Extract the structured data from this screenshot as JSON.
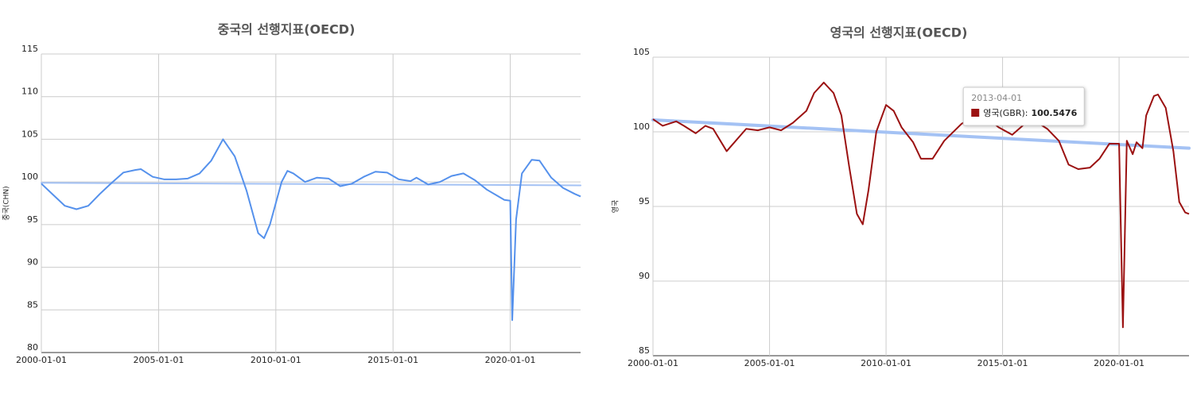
{
  "chart_data": [
    {
      "type": "line",
      "title": "중국의 선행지표(OECD)",
      "y_label": "중국(CHN)",
      "x": [
        "2000-01-01",
        "2000-07-01",
        "2001-01-01",
        "2001-07-01",
        "2002-01-01",
        "2002-07-01",
        "2003-01-01",
        "2003-07-01",
        "2004-01-01",
        "2004-04-01",
        "2004-10-01",
        "2005-04-01",
        "2005-10-01",
        "2006-04-01",
        "2006-10-01",
        "2007-04-01",
        "2007-10-01",
        "2008-04-01",
        "2008-10-01",
        "2009-04-01",
        "2009-07-01",
        "2009-10-01",
        "2010-04-01",
        "2010-07-01",
        "2010-10-01",
        "2011-04-01",
        "2011-10-01",
        "2012-04-01",
        "2012-10-01",
        "2013-04-01",
        "2013-10-01",
        "2014-04-01",
        "2014-10-01",
        "2015-04-01",
        "2015-10-01",
        "2016-01-01",
        "2016-07-01",
        "2017-01-01",
        "2017-07-01",
        "2018-01-01",
        "2018-07-01",
        "2019-01-01",
        "2019-07-01",
        "2019-10-01",
        "2020-01-01",
        "2020-02-01",
        "2020-04-01",
        "2020-07-01",
        "2020-12-01",
        "2021-04-01",
        "2021-10-01",
        "2022-04-01",
        "2022-10-01",
        "2023-01-01"
      ],
      "series": [
        {
          "color": "#5591ec",
          "values": [
            99.8,
            98.5,
            97.2,
            96.8,
            97.2,
            98.6,
            99.9,
            101.1,
            101.4,
            101.5,
            100.6,
            100.3,
            100.3,
            100.4,
            101.0,
            102.5,
            105.0,
            103.0,
            99.0,
            94.0,
            93.4,
            95.0,
            100.0,
            101.3,
            101.0,
            100.0,
            100.5,
            100.4,
            99.5,
            99.8,
            100.6,
            101.2,
            101.1,
            100.3,
            100.1,
            100.5,
            99.7,
            100.0,
            100.7,
            101.0,
            100.2,
            99.1,
            98.3,
            97.9,
            97.8,
            83.8,
            95.6,
            101.0,
            102.6,
            102.5,
            100.5,
            99.3,
            98.6,
            98.3
          ]
        }
      ],
      "trendline": {
        "color": "#a4c2f4",
        "x": [
          "2000-01-01",
          "2023-01-01"
        ],
        "values": [
          99.9,
          99.6
        ]
      },
      "xlim": [
        "2000-01-01",
        "2023-01-01"
      ],
      "xticks": [
        "2000-01-01",
        "2005-01-01",
        "2010-01-01",
        "2015-01-01",
        "2020-01-01"
      ],
      "ylim": [
        80,
        115
      ],
      "yticks": [
        80,
        85,
        90,
        95,
        100,
        105,
        110,
        115
      ],
      "grid": true
    },
    {
      "type": "line",
      "title": "영국의 선행지표(OECD)",
      "y_label": "영국",
      "x": [
        "2000-01-01",
        "2000-06-01",
        "2001-01-01",
        "2001-05-01",
        "2001-11-01",
        "2002-04-01",
        "2002-08-01",
        "2003-03-01",
        "2004-01-01",
        "2004-07-01",
        "2005-01-01",
        "2005-07-01",
        "2006-01-01",
        "2006-08-01",
        "2006-12-01",
        "2007-05-01",
        "2007-10-01",
        "2008-02-01",
        "2008-06-01",
        "2008-10-01",
        "2009-01-01",
        "2009-04-01",
        "2009-08-01",
        "2010-01-01",
        "2010-05-01",
        "2010-09-01",
        "2011-03-01",
        "2011-07-01",
        "2012-01-01",
        "2012-07-01",
        "2013-04-01",
        "2013-12-01",
        "2014-05-01",
        "2014-11-01",
        "2015-06-01",
        "2016-01-01",
        "2016-06-01",
        "2016-12-01",
        "2017-06-01",
        "2017-11-01",
        "2018-04-01",
        "2018-10-01",
        "2019-03-01",
        "2019-08-01",
        "2020-01-01",
        "2020-03-01",
        "2020-05-01",
        "2020-08-01",
        "2020-10-01",
        "2021-01-01",
        "2021-03-01",
        "2021-07-01",
        "2021-09-01",
        "2022-01-01",
        "2022-05-01",
        "2022-08-01",
        "2022-11-01",
        "2023-01-01"
      ],
      "series": [
        {
          "color": "#9b1111",
          "values": [
            100.85,
            100.4,
            100.7,
            100.4,
            99.9,
            100.4,
            100.2,
            98.7,
            100.2,
            100.1,
            100.3,
            100.1,
            100.6,
            101.4,
            102.6,
            103.3,
            102.6,
            101.1,
            97.7,
            94.5,
            93.8,
            96.1,
            100.0,
            101.8,
            101.4,
            100.3,
            99.3,
            98.2,
            98.2,
            99.4,
            100.5476,
            101.1,
            100.9,
            100.3,
            99.8,
            100.6,
            100.7,
            100.2,
            99.4,
            97.8,
            97.5,
            97.6,
            98.2,
            99.2,
            99.2,
            86.9,
            99.4,
            98.5,
            99.3,
            98.9,
            101.1,
            102.4,
            102.5,
            101.6,
            98.7,
            95.3,
            94.6,
            94.5
          ]
        }
      ],
      "trendline": {
        "color": "#a4c2f4",
        "x": [
          "2000-01-01",
          "2023-01-01"
        ],
        "values": [
          100.8,
          98.9
        ]
      },
      "tooltip": {
        "x": "2013-04-01",
        "label": "영국(GBR):",
        "value": 100.5476
      },
      "xlim": [
        "2000-01-01",
        "2023-01-01"
      ],
      "xticks": [
        "2000-01-01",
        "2005-01-01",
        "2010-01-01",
        "2015-01-01",
        "2020-01-01"
      ],
      "ylim": [
        85,
        105
      ],
      "yticks": [
        85,
        90,
        95,
        100,
        105
      ],
      "grid": true
    }
  ]
}
